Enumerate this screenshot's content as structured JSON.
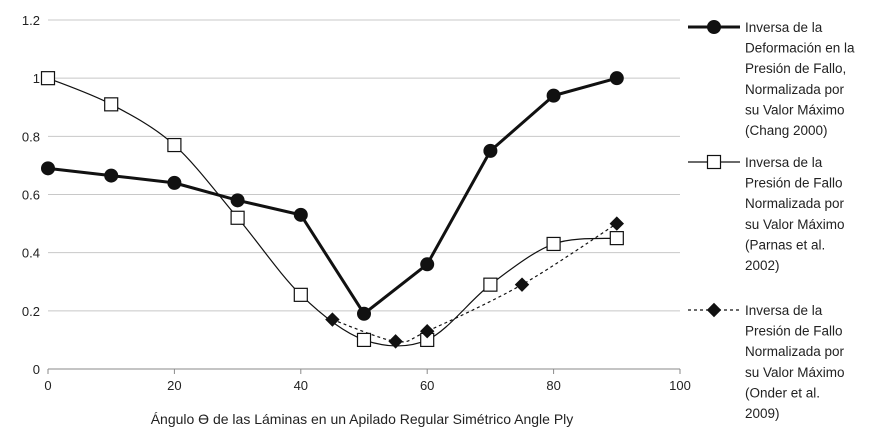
{
  "chart_data": {
    "type": "line",
    "title": "",
    "xlabel": "Ángulo ϴ  de las Láminas en un Apilado Regular Simétrico Angle Ply",
    "ylabel": "",
    "xlim": [
      0,
      100
    ],
    "ylim": [
      0,
      1.2
    ],
    "x_ticks": [
      0,
      20,
      40,
      60,
      80,
      100
    ],
    "x_tick_labels": [
      "0",
      "20",
      "40",
      "60",
      "80",
      "100"
    ],
    "y_ticks": [
      0,
      0.2,
      0.4,
      0.6,
      0.8,
      1,
      1.2
    ],
    "y_tick_labels": [
      "0",
      "0.2",
      "0.4",
      "0.6",
      "0.8",
      "1",
      "1.2"
    ],
    "grid": "horizontal",
    "legend_position": "right",
    "series": [
      {
        "name_lines": [
          "Inversa de la",
          "Deformación en la",
          "Presión de Fallo,",
          "Normalizada por",
          "su Valor Máximo",
          "(Chang 2000)"
        ],
        "line_style": "solid-bold",
        "marker": "circle",
        "color": "#111111",
        "x": [
          0,
          10,
          20,
          30,
          40,
          50,
          60,
          70,
          80,
          90
        ],
        "y": [
          0.69,
          0.665,
          0.64,
          0.58,
          0.53,
          0.19,
          0.36,
          0.75,
          0.94,
          1.0
        ]
      },
      {
        "name_lines": [
          "Inversa de la",
          "Presión de Fallo",
          "Normalizada por",
          "su Valor Máximo",
          "(Parnas et al.",
          "2002)"
        ],
        "line_style": "solid-thin-smooth",
        "marker": "square-open",
        "color": "#111111",
        "x": [
          0,
          10,
          20,
          30,
          40,
          50,
          60,
          70,
          80,
          90
        ],
        "y": [
          1.0,
          0.91,
          0.77,
          0.52,
          0.255,
          0.1,
          0.1,
          0.29,
          0.43,
          0.45
        ]
      },
      {
        "name_lines": [
          "Inversa de la",
          "Presión de Fallo",
          "Normalizada por",
          "su Valor Máximo",
          "(Onder et al.",
          "2009)"
        ],
        "line_style": "dotted-smooth",
        "marker": "diamond",
        "color": "#111111",
        "x": [
          45,
          55,
          60,
          75,
          90
        ],
        "y": [
          0.17,
          0.095,
          0.13,
          0.29,
          0.5
        ]
      }
    ]
  }
}
